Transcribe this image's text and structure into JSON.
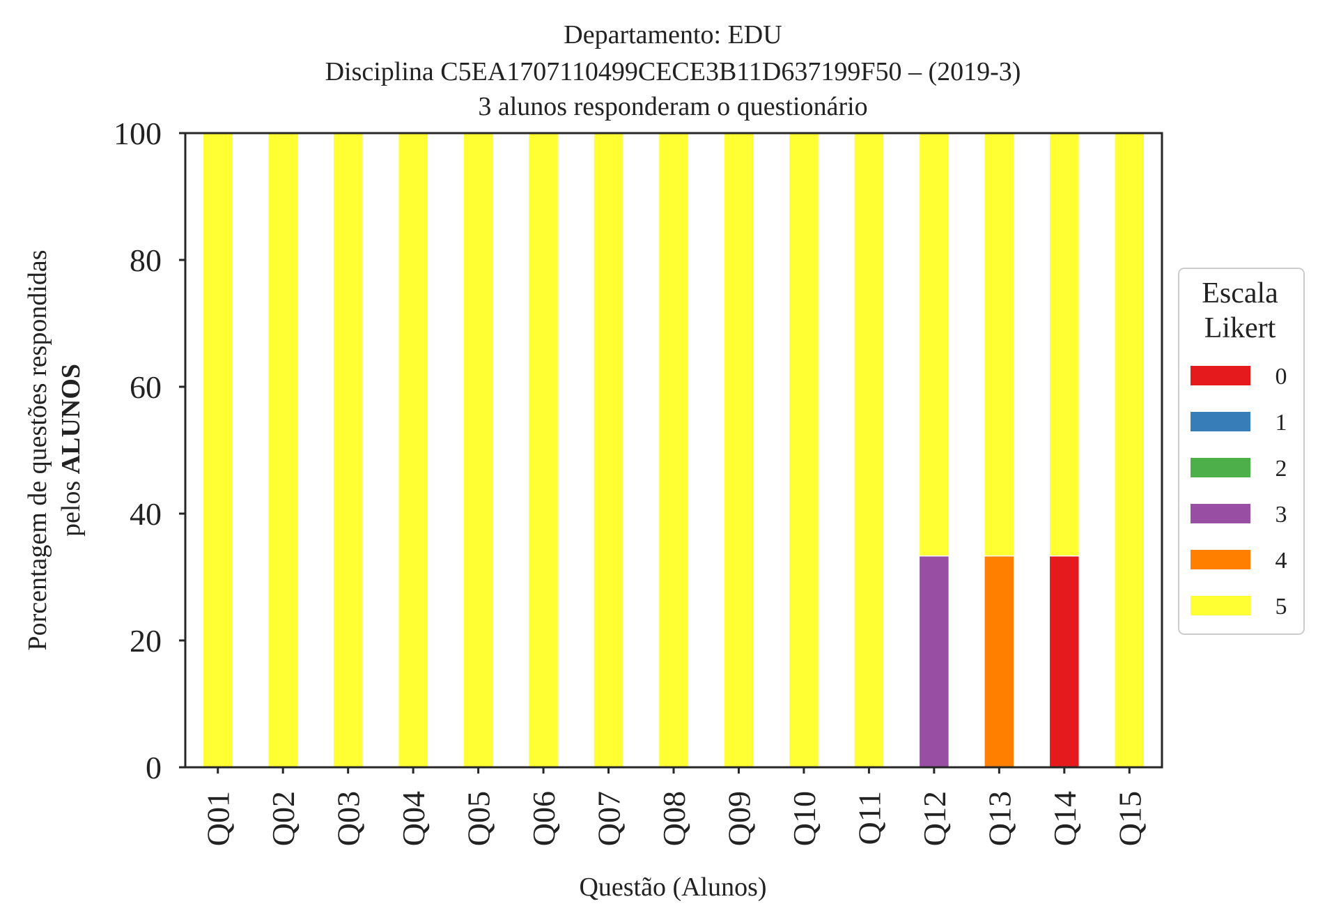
{
  "chart_data": {
    "type": "bar",
    "stacked": true,
    "title_lines": [
      "Departamento: EDU",
      "Disciplina C5EA1707110499CECE3B11D637199F50 – (2019-3)",
      "3 alunos responderam o questionário"
    ],
    "xlabel": "Questão (Alunos)",
    "ylabel_line1": "Porcentagem de questões respondidas",
    "ylabel_line2_prefix": "pelos ",
    "ylabel_line2_bold": "ALUNOS",
    "ylim": [
      0,
      100
    ],
    "yticks": [
      "0",
      "20",
      "40",
      "60",
      "80",
      "100"
    ],
    "grid": false,
    "categories": [
      "Q01",
      "Q02",
      "Q03",
      "Q04",
      "Q05",
      "Q06",
      "Q07",
      "Q08",
      "Q09",
      "Q10",
      "Q11",
      "Q12",
      "Q13",
      "Q14",
      "Q15"
    ],
    "series": [
      {
        "name": "0",
        "color": "#e41a1c",
        "values": [
          0,
          0,
          0,
          0,
          0,
          0,
          0,
          0,
          0,
          0,
          0,
          0,
          0,
          33.33,
          0
        ]
      },
      {
        "name": "1",
        "color": "#377eb8",
        "values": [
          0,
          0,
          0,
          0,
          0,
          0,
          0,
          0,
          0,
          0,
          0,
          0,
          0,
          0,
          0
        ]
      },
      {
        "name": "2",
        "color": "#4daf4a",
        "values": [
          0,
          0,
          0,
          0,
          0,
          0,
          0,
          0,
          0,
          0,
          0,
          0,
          0,
          0,
          0
        ]
      },
      {
        "name": "3",
        "color": "#984ea3",
        "values": [
          0,
          0,
          0,
          0,
          0,
          0,
          0,
          0,
          0,
          0,
          0,
          33.33,
          0,
          0,
          0
        ]
      },
      {
        "name": "4",
        "color": "#ff7f00",
        "values": [
          0,
          0,
          0,
          0,
          0,
          0,
          0,
          0,
          0,
          0,
          0,
          0,
          33.33,
          0,
          0
        ]
      },
      {
        "name": "5",
        "color": "#ffff33",
        "values": [
          100,
          100,
          100,
          100,
          100,
          100,
          100,
          100,
          100,
          100,
          100,
          66.67,
          66.67,
          66.67,
          100
        ]
      }
    ],
    "legend": {
      "title_lines": [
        "Escala",
        "Likert"
      ],
      "placement": "center-right-outside"
    }
  }
}
